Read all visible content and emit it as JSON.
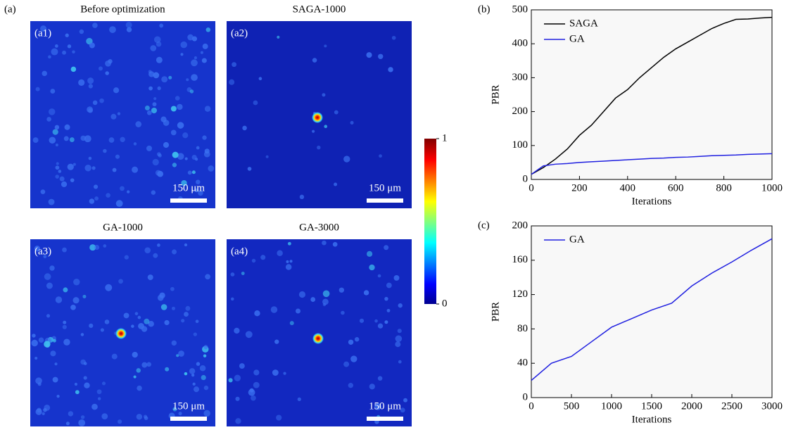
{
  "figure_label": "(a)",
  "images": [
    {
      "title": "Before optimization",
      "label": "(a1)",
      "scale_bar": "150 μm"
    },
    {
      "title": "SAGA-1000",
      "label": "(a2)",
      "scale_bar": "150 μm"
    },
    {
      "title": "GA-1000",
      "label": "(a3)",
      "scale_bar": "150 μm"
    },
    {
      "title": "GA-3000",
      "label": "(a4)",
      "scale_bar": "150 μm"
    }
  ],
  "colorbar": {
    "lim": [
      0,
      1
    ],
    "ticks": [
      0,
      1
    ]
  },
  "chart_data": [
    {
      "type": "line",
      "panel_label": "(b)",
      "xlabel": "Iterations",
      "ylabel": "PBR",
      "x": [
        0,
        50,
        100,
        150,
        200,
        250,
        300,
        350,
        400,
        450,
        500,
        550,
        600,
        650,
        700,
        750,
        800,
        850,
        900,
        950,
        1000
      ],
      "series": [
        {
          "name": "SAGA",
          "color": "#000000",
          "values": [
            15,
            35,
            60,
            90,
            130,
            160,
            200,
            240,
            265,
            300,
            330,
            360,
            385,
            405,
            425,
            445,
            460,
            472,
            473,
            476,
            478
          ]
        },
        {
          "name": "GA",
          "color": "#2020e0",
          "values": [
            15,
            40,
            45,
            47,
            50,
            52,
            54,
            56,
            58,
            60,
            62,
            63,
            65,
            66,
            68,
            70,
            71,
            72,
            74,
            75,
            76
          ]
        }
      ],
      "xlim": [
        0,
        1000
      ],
      "ylim": [
        0,
        500
      ],
      "xticks": [
        0,
        200,
        400,
        600,
        800,
        1000
      ],
      "yticks": [
        0,
        100,
        200,
        300,
        400,
        500
      ],
      "legend": "upper-left"
    },
    {
      "type": "line",
      "panel_label": "(c)",
      "xlabel": "Iterations",
      "ylabel": "PBR",
      "x": [
        0,
        250,
        500,
        750,
        1000,
        1250,
        1500,
        1750,
        2000,
        2250,
        2500,
        2750,
        3000
      ],
      "series": [
        {
          "name": "GA",
          "color": "#2020e0",
          "values": [
            20,
            40,
            48,
            65,
            82,
            92,
            102,
            110,
            130,
            145,
            158,
            172,
            185
          ]
        }
      ],
      "xlim": [
        0,
        3000
      ],
      "ylim": [
        0,
        200
      ],
      "xticks": [
        0,
        500,
        1000,
        1500,
        2000,
        2500,
        3000
      ],
      "yticks": [
        0,
        40,
        80,
        120,
        160,
        200
      ],
      "legend": "upper-left"
    }
  ]
}
